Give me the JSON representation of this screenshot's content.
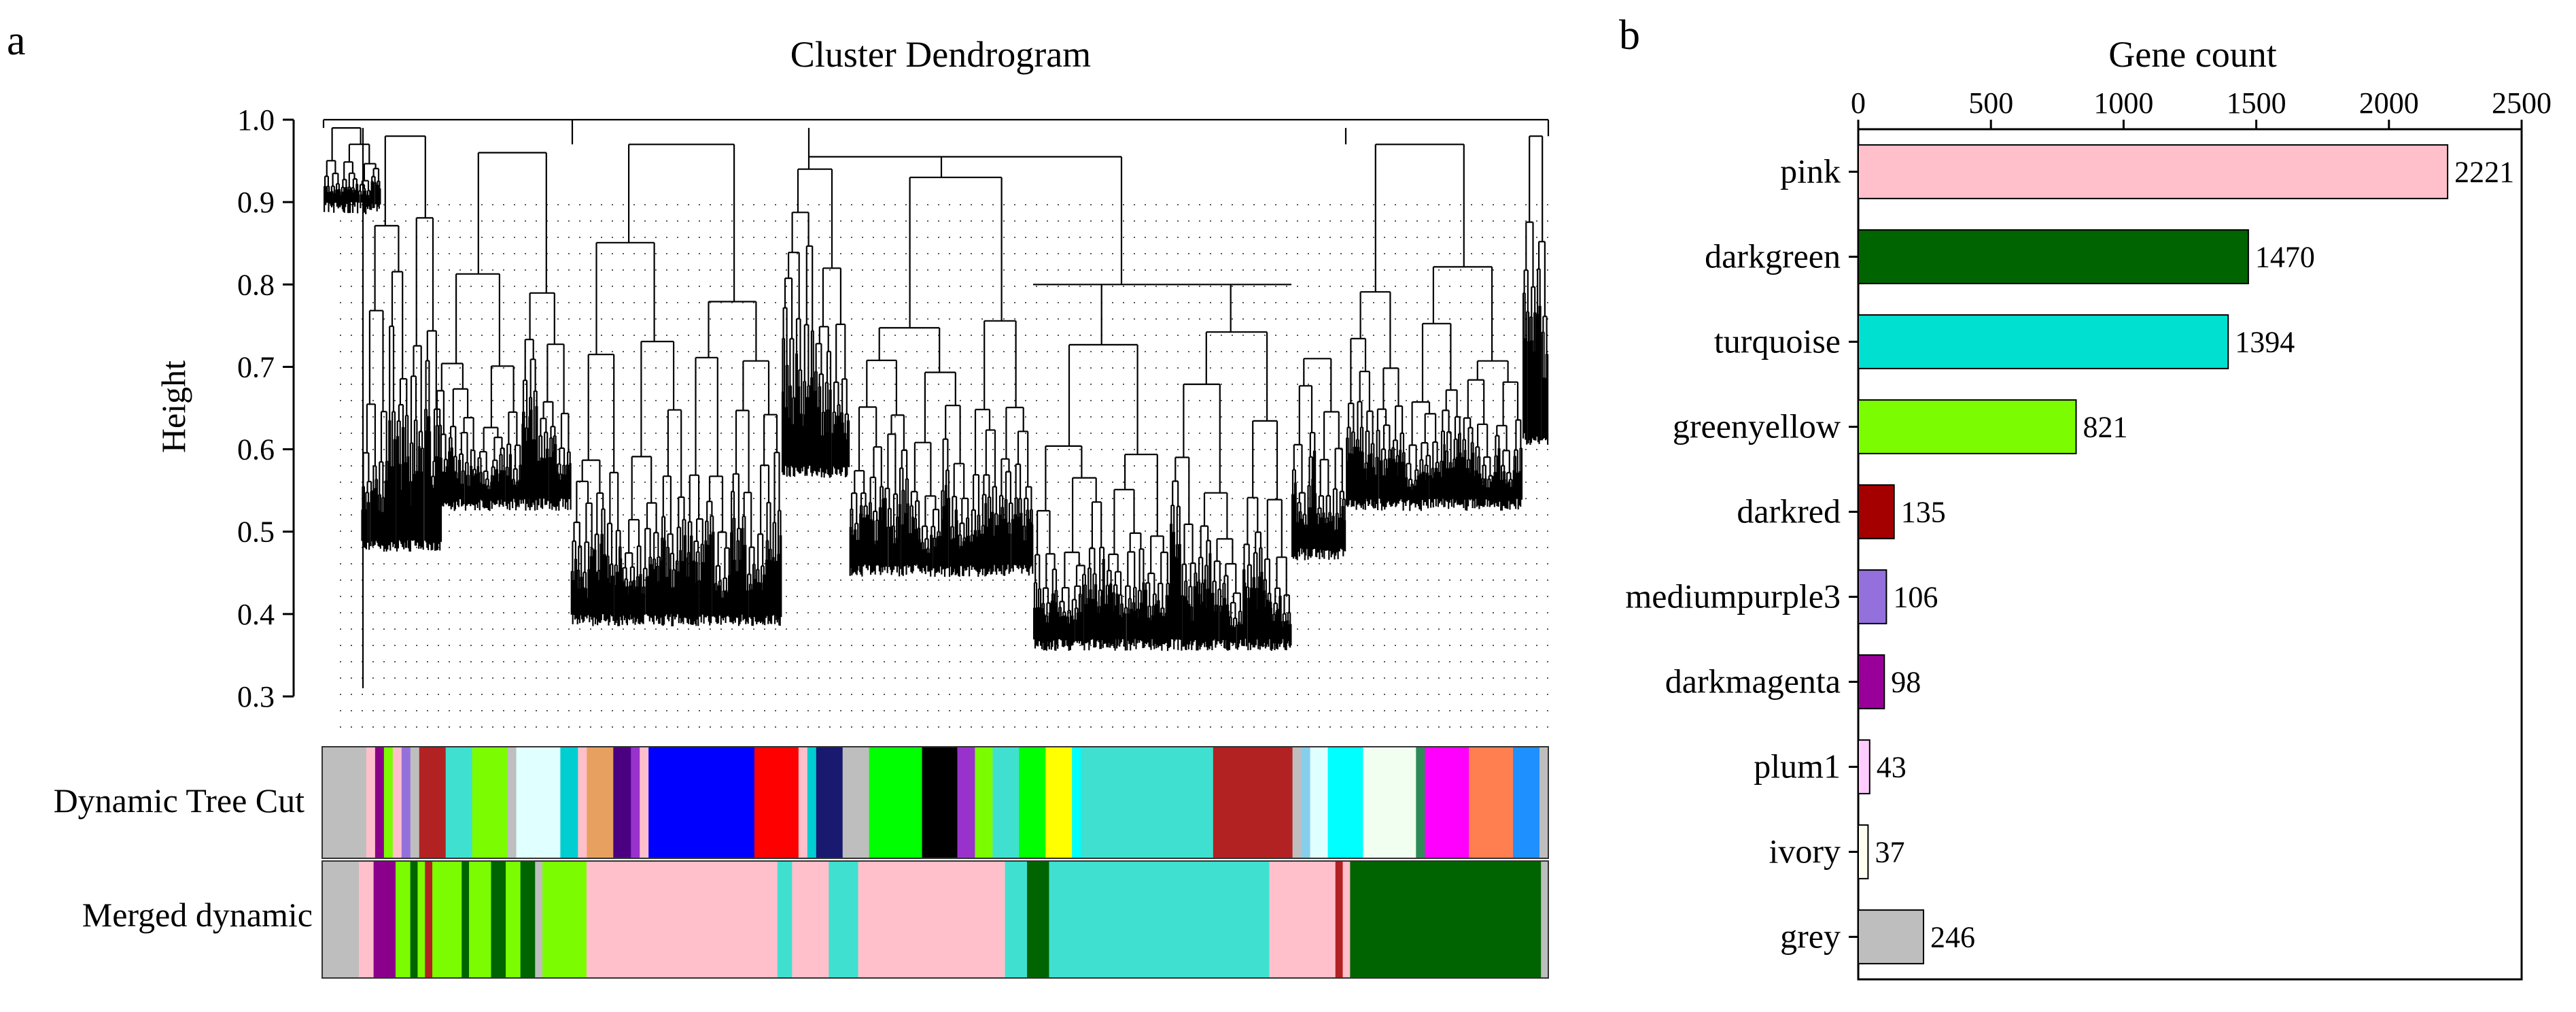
{
  "panel_a": {
    "letter": "a",
    "title": "Cluster Dendrogram",
    "ylabel": "Height",
    "yticks": [
      "1.0",
      "0.9",
      "0.8",
      "0.7",
      "0.6",
      "0.5",
      "0.4",
      "0.3"
    ],
    "row_labels": [
      "Dynamic Tree Cut",
      "Merged dynamic"
    ]
  },
  "panel_b": {
    "letter": "b",
    "title": "Gene count"
  },
  "chart_data": [
    {
      "type": "dendrogram",
      "title": "Cluster Dendrogram",
      "ylabel": "Height",
      "ylim": [
        0.3,
        1.0
      ],
      "yticks": [
        1.0,
        0.9,
        0.8,
        0.7,
        0.6,
        0.5,
        0.4,
        0.3
      ],
      "color_rows": [
        {
          "name": "Dynamic Tree Cut",
          "segments": [
            {
              "color": "#bebebe",
              "weight": 5
            },
            {
              "color": "#ffc0cb",
              "weight": 1
            },
            {
              "color": "#8b008b",
              "weight": 1
            },
            {
              "color": "#7cfc00",
              "weight": 1
            },
            {
              "color": "#ffc0cb",
              "weight": 1
            },
            {
              "color": "#9370db",
              "weight": 1
            },
            {
              "color": "#bebebe",
              "weight": 1
            },
            {
              "color": "#b22222",
              "weight": 3
            },
            {
              "color": "#40e0d0",
              "weight": 3
            },
            {
              "color": "#7cfc00",
              "weight": 4
            },
            {
              "color": "#bebebe",
              "weight": 1
            },
            {
              "color": "#e0ffff",
              "weight": 5
            },
            {
              "color": "#00ced1",
              "weight": 2
            },
            {
              "color": "#ffc0cb",
              "weight": 1
            },
            {
              "color": "#e8a060",
              "weight": 3
            },
            {
              "color": "#4b0082",
              "weight": 2
            },
            {
              "color": "#9932cc",
              "weight": 1
            },
            {
              "color": "#ffc0cb",
              "weight": 1
            },
            {
              "color": "#0000ff",
              "weight": 12
            },
            {
              "color": "#ff0000",
              "weight": 5
            },
            {
              "color": "#ffc0cb",
              "weight": 1
            },
            {
              "color": "#00ced1",
              "weight": 1
            },
            {
              "color": "#191970",
              "weight": 3
            },
            {
              "color": "#bebebe",
              "weight": 3
            },
            {
              "color": "#00ff00",
              "weight": 6
            },
            {
              "color": "#000000",
              "weight": 4
            },
            {
              "color": "#9932cc",
              "weight": 2
            },
            {
              "color": "#7cfc00",
              "weight": 2
            },
            {
              "color": "#40e0d0",
              "weight": 3
            },
            {
              "color": "#00ff00",
              "weight": 3
            },
            {
              "color": "#ffff00",
              "weight": 3
            },
            {
              "color": "#00ffff",
              "weight": 1
            },
            {
              "color": "#40e0d0",
              "weight": 15
            },
            {
              "color": "#b22222",
              "weight": 9
            },
            {
              "color": "#bebebe",
              "weight": 1
            },
            {
              "color": "#87ceeb",
              "weight": 1
            },
            {
              "color": "#e0ffff",
              "weight": 2
            },
            {
              "color": "#00ffff",
              "weight": 4
            },
            {
              "color": "#f0fff0",
              "weight": 6
            },
            {
              "color": "#2e8b57",
              "weight": 1
            },
            {
              "color": "#ff00ff",
              "weight": 5
            },
            {
              "color": "#ff7f50",
              "weight": 5
            },
            {
              "color": "#1e90ff",
              "weight": 3
            },
            {
              "color": "#bebebe",
              "weight": 1
            }
          ]
        },
        {
          "name": "Merged dynamic",
          "segments": [
            {
              "color": "#bebebe",
              "weight": 5
            },
            {
              "color": "#ffc0cb",
              "weight": 2
            },
            {
              "color": "#8b008b",
              "weight": 3
            },
            {
              "color": "#7cfc00",
              "weight": 2
            },
            {
              "color": "#006400",
              "weight": 1
            },
            {
              "color": "#7cfc00",
              "weight": 1
            },
            {
              "color": "#b22222",
              "weight": 1
            },
            {
              "color": "#7cfc00",
              "weight": 4
            },
            {
              "color": "#006400",
              "weight": 1
            },
            {
              "color": "#7cfc00",
              "weight": 3
            },
            {
              "color": "#006400",
              "weight": 2
            },
            {
              "color": "#7cfc00",
              "weight": 2
            },
            {
              "color": "#006400",
              "weight": 2
            },
            {
              "color": "#bebebe",
              "weight": 1
            },
            {
              "color": "#7cfc00",
              "weight": 6
            },
            {
              "color": "#ffc0cb",
              "weight": 26
            },
            {
              "color": "#40e0d0",
              "weight": 2
            },
            {
              "color": "#ffc0cb",
              "weight": 5
            },
            {
              "color": "#40e0d0",
              "weight": 4
            },
            {
              "color": "#ffc0cb",
              "weight": 20
            },
            {
              "color": "#40e0d0",
              "weight": 3
            },
            {
              "color": "#006400",
              "weight": 3
            },
            {
              "color": "#40e0d0",
              "weight": 30
            },
            {
              "color": "#ffc0cb",
              "weight": 9
            },
            {
              "color": "#b22222",
              "weight": 1
            },
            {
              "color": "#ffc0cb",
              "weight": 1
            },
            {
              "color": "#006400",
              "weight": 26
            },
            {
              "color": "#bebebe",
              "weight": 1
            }
          ]
        }
      ]
    },
    {
      "type": "bar",
      "orientation": "horizontal",
      "title": "Gene count",
      "xlim": [
        0,
        2500
      ],
      "xticks": [
        0,
        500,
        1000,
        1500,
        2000,
        2500
      ],
      "categories": [
        "pink",
        "darkgreen",
        "turquoise",
        "greenyellow",
        "darkred",
        "mediumpurple3",
        "darkmagenta",
        "plum1",
        "ivory",
        "grey"
      ],
      "values": [
        2221,
        1470,
        1394,
        821,
        135,
        106,
        98,
        43,
        37,
        246
      ],
      "colors": [
        "#ffc0cb",
        "#006400",
        "#00e0d0",
        "#7cfc00",
        "#a50000",
        "#9370db",
        "#990099",
        "#ffccff",
        "#fffff0",
        "#bebebe"
      ]
    }
  ]
}
